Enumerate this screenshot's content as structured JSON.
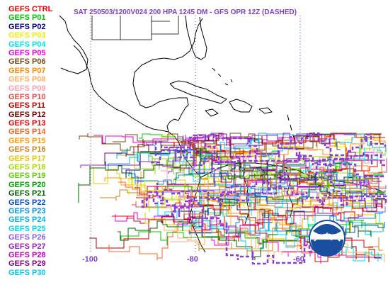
{
  "title": "SAT 250503/1200V024  200 HPA 1245 DM - GFS OPR 12Z (DASHED)",
  "legend": [
    {
      "label": "GEFS CTRL",
      "color": "#e60000"
    },
    {
      "label": "GEFS P01",
      "color": "#00c800"
    },
    {
      "label": "GEFS P02",
      "color": "#000080"
    },
    {
      "label": "GEFS P03",
      "color": "#f0f000"
    },
    {
      "label": "GEFS P04",
      "color": "#00e6e6"
    },
    {
      "label": "GEFS P05",
      "color": "#e600e6"
    },
    {
      "label": "GEFS P06",
      "color": "#7a4a1a"
    },
    {
      "label": "GEFS P07",
      "color": "#ff8c00"
    },
    {
      "label": "GEFS P08",
      "color": "#ffb060"
    },
    {
      "label": "GEFS P09",
      "color": "#ff9eb0"
    },
    {
      "label": "GEFS P10",
      "color": "#e64a4a"
    },
    {
      "label": "GEFS P11",
      "color": "#c00000"
    },
    {
      "label": "GEFS P12",
      "color": "#800000"
    },
    {
      "label": "GEFS P13",
      "color": "#e60000"
    },
    {
      "label": "GEFS P14",
      "color": "#ff6020"
    },
    {
      "label": "GEFS P15",
      "color": "#ff9a00"
    },
    {
      "label": "GEFS P16",
      "color": "#d08020"
    },
    {
      "label": "GEFS P17",
      "color": "#e6c800"
    },
    {
      "label": "GEFS P18",
      "color": "#a8d800"
    },
    {
      "label": "GEFS P19",
      "color": "#60d000"
    },
    {
      "label": "GEFS P20",
      "color": "#00a000"
    },
    {
      "label": "GEFS P21",
      "color": "#006400"
    },
    {
      "label": "GEFS P22",
      "color": "#0050c8"
    },
    {
      "label": "GEFS P23",
      "color": "#0090e6"
    },
    {
      "label": "GEFS P24",
      "color": "#00b4f0"
    },
    {
      "label": "GEFS P25",
      "color": "#00d8f0"
    },
    {
      "label": "GEFS P26",
      "color": "#8a60e0"
    },
    {
      "label": "GEFS P27",
      "color": "#a020c0"
    },
    {
      "label": "GEFS P28",
      "color": "#c000c0"
    },
    {
      "label": "GEFS P29",
      "color": "#8a008a"
    },
    {
      "label": "GEFS P30",
      "color": "#00c8f0"
    }
  ],
  "longitude_labels": [
    "-100",
    "-80",
    "-60"
  ],
  "title_color": "#7b3fc8",
  "grid_color": "#7b3fc8",
  "coast_color": "#000000"
}
